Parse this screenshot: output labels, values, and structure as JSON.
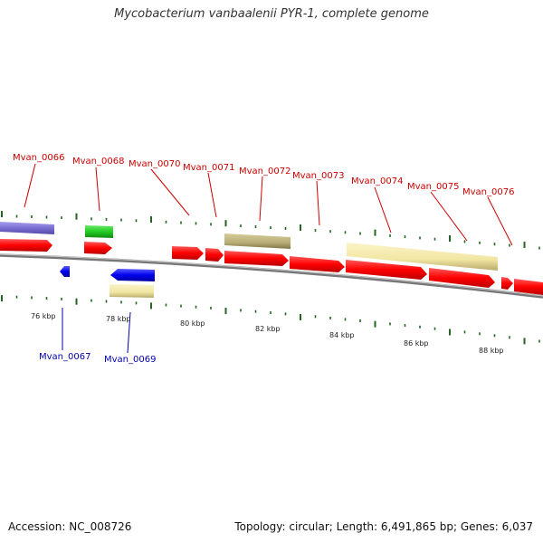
{
  "title": "Mycobacterium vanbaalenii PYR-1, complete genome",
  "footer": {
    "accession": "Accession: NC_008726",
    "summary": "Topology: circular; Length: 6,491,865 bp; Genes: 6,037"
  },
  "colors": {
    "cds_red": "#ff0000",
    "cds_blue": "#0000ee",
    "purple": "#7a6fd0",
    "green": "#22cc22",
    "pale_yellow": "#f2e6a3",
    "olive": "#b8ad75",
    "label_red": "#cc0000",
    "label_blue": "#0000aa",
    "tick_green": "#226622",
    "backbone": "#777777"
  },
  "top_labels": [
    "Mvan_0066",
    "Mvan_0068",
    "Mvan_0070",
    "Mvan_0071",
    "Mvan_0072",
    "Mvan_0073",
    "Mvan_0074",
    "Mvan_0075",
    "Mvan_0076"
  ],
  "bottom_labels": [
    "Mvan_0067",
    "Mvan_0069"
  ],
  "scale_labels": [
    "76 kbp",
    "78 kbp",
    "80 kbp",
    "82 kbp",
    "84 kbp",
    "86 kbp",
    "88 kbp"
  ]
}
